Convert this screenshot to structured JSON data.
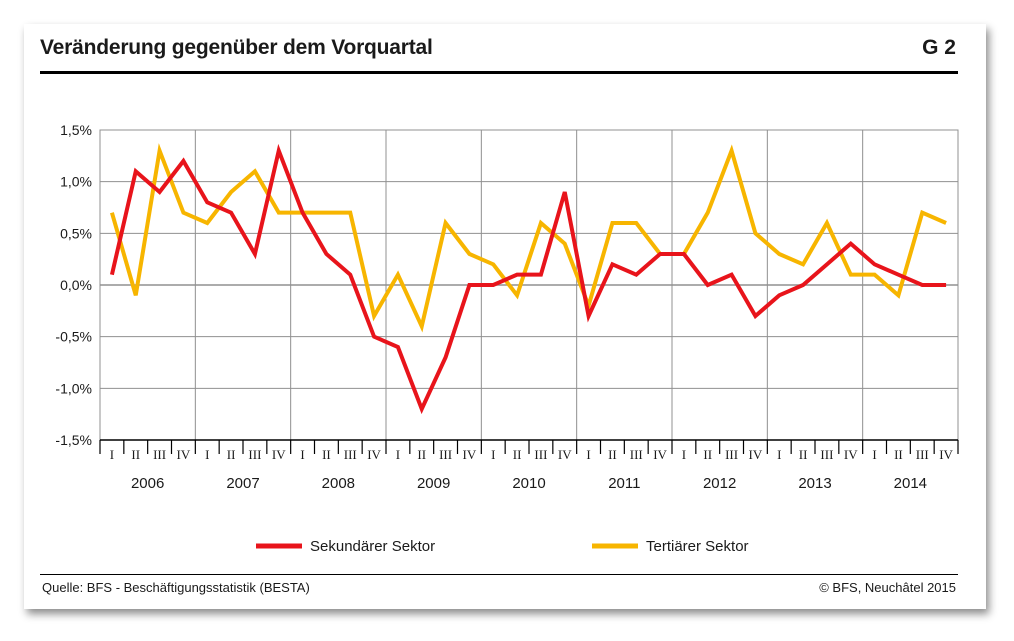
{
  "header": {
    "title": "Veränderung gegenüber dem Vorquartal",
    "figure_number": "G 2"
  },
  "footer": {
    "source": "Quelle: BFS - Beschäftigungsstatistik (BESTA)",
    "copyright": "© BFS, Neuchâtel 2015"
  },
  "colors": {
    "grid": "#909090",
    "axis": "#000000",
    "series_colors": [
      "#e8141b",
      "#f7b500"
    ]
  },
  "chart_data": {
    "type": "line",
    "title": "Veränderung gegenüber dem Vorquartal",
    "years": [
      "2006",
      "2007",
      "2008",
      "2009",
      "2010",
      "2011",
      "2012",
      "2013",
      "2014"
    ],
    "quarters": [
      "I",
      "II",
      "III",
      "IV"
    ],
    "ylim": [
      -1.5,
      1.5
    ],
    "yticks": [
      1.5,
      1.0,
      0.5,
      0.0,
      -0.5,
      -1.0,
      -1.5
    ],
    "ytick_labels": [
      "1,5%",
      "1,0%",
      "0,5%",
      "0,0%",
      "-0,5%",
      "-1,0%",
      "-1,5%"
    ],
    "grid": true,
    "legend_position": "bottom",
    "series": [
      {
        "name": "Sekundärer Sektor",
        "values": [
          0.1,
          1.1,
          0.9,
          1.2,
          0.8,
          0.7,
          0.3,
          1.3,
          0.7,
          0.3,
          0.1,
          -0.5,
          -0.6,
          -1.2,
          -0.7,
          0.0,
          0.0,
          0.1,
          0.1,
          0.9,
          -0.3,
          0.2,
          0.1,
          0.3,
          0.3,
          0.0,
          0.1,
          -0.3,
          -0.1,
          0.0,
          0.2,
          0.4,
          0.2,
          0.1,
          0.0,
          0.0
        ]
      },
      {
        "name": "Tertiärer Sektor",
        "values": [
          0.7,
          -0.1,
          1.3,
          0.7,
          0.6,
          0.9,
          1.1,
          0.7,
          0.7,
          0.7,
          0.7,
          -0.3,
          0.1,
          -0.4,
          0.6,
          0.3,
          0.2,
          -0.1,
          0.6,
          0.4,
          -0.2,
          0.6,
          0.6,
          0.3,
          0.3,
          0.7,
          1.3,
          0.5,
          0.3,
          0.2,
          0.6,
          0.1,
          0.1,
          -0.1,
          0.7,
          0.6
        ]
      }
    ]
  }
}
